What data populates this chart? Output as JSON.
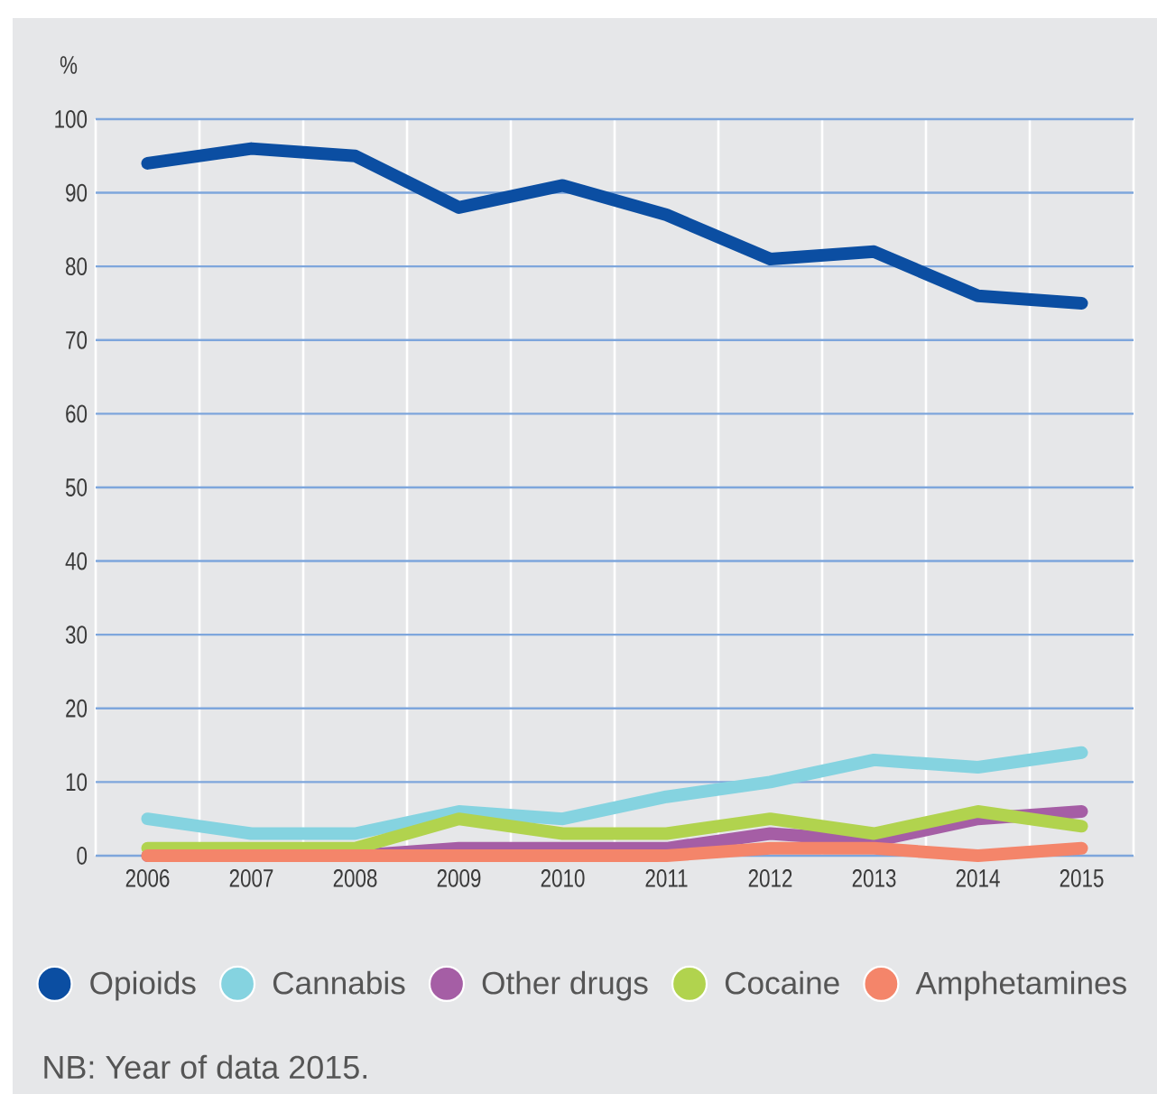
{
  "chart_data": {
    "type": "line",
    "ylabel": "%",
    "categories": [
      "2006",
      "2007",
      "2008",
      "2009",
      "2010",
      "2011",
      "2012",
      "2013",
      "2014",
      "2015"
    ],
    "series": [
      {
        "name": "Opioids",
        "color": "#0b4ea2",
        "values": [
          94,
          96,
          95,
          88,
          91,
          87,
          81,
          82,
          76,
          75
        ]
      },
      {
        "name": "Cannabis",
        "color": "#85d3e0",
        "values": [
          5,
          3,
          3,
          6,
          5,
          8,
          10,
          13,
          12,
          14
        ]
      },
      {
        "name": "Other drugs",
        "color": "#a55ea5",
        "values": [
          0,
          0,
          0,
          1,
          1,
          1,
          3,
          2,
          5,
          6
        ]
      },
      {
        "name": "Cocaine",
        "color": "#b1d34e",
        "values": [
          1,
          1,
          1,
          5,
          3,
          3,
          5,
          3,
          6,
          4
        ]
      },
      {
        "name": "Amphetamines",
        "color": "#f4856a",
        "values": [
          0,
          0,
          0,
          0,
          0,
          0,
          1,
          1,
          0,
          1
        ]
      }
    ],
    "ylim": [
      0,
      100
    ],
    "yticks": [
      0,
      10,
      20,
      30,
      40,
      50,
      60,
      70,
      80,
      90,
      100
    ],
    "grid": true,
    "legend": "bottom",
    "annotations": [
      "NB: Year of data 2015."
    ]
  }
}
